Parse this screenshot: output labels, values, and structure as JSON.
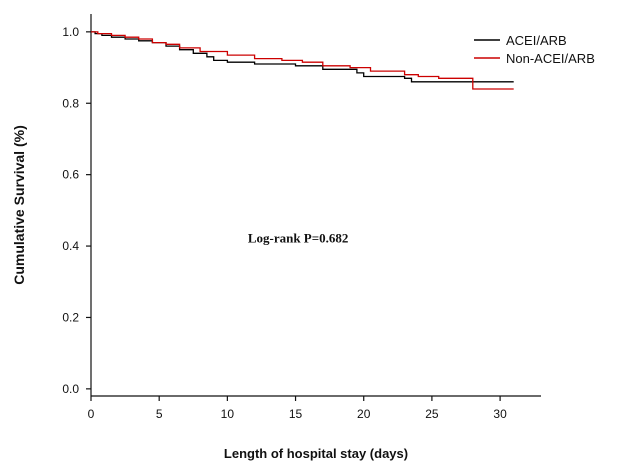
{
  "chart_data": {
    "type": "line",
    "xlabel": "Length of hospital stay (days)",
    "ylabel": "Cumulative Survival (%)",
    "xlim": [
      0,
      33
    ],
    "ylim": [
      -0.02,
      1.05
    ],
    "xticks": [
      0,
      5,
      10,
      15,
      20,
      25,
      30
    ],
    "yticks": [
      0.0,
      0.2,
      0.4,
      0.6,
      0.8,
      1.0
    ],
    "xtick_labels": [
      "0",
      "5",
      "10",
      "15",
      "20",
      "25",
      "30"
    ],
    "ytick_labels": [
      "0.0",
      "0.2",
      "0.4",
      "0.6",
      "0.8",
      "1.0"
    ],
    "legend_position": "top-right",
    "annotation": "Log-rank P=0.682",
    "grid": false,
    "series": [
      {
        "name": "ACEI/ARB",
        "color": "#000000",
        "step": true,
        "points": [
          [
            0,
            1.0
          ],
          [
            0.3,
            0.995
          ],
          [
            0.8,
            0.99
          ],
          [
            1.5,
            0.985
          ],
          [
            2.5,
            0.98
          ],
          [
            3.5,
            0.975
          ],
          [
            4.5,
            0.97
          ],
          [
            5.5,
            0.96
          ],
          [
            6.5,
            0.95
          ],
          [
            7.5,
            0.94
          ],
          [
            8.5,
            0.93
          ],
          [
            9.0,
            0.92
          ],
          [
            10.0,
            0.915
          ],
          [
            12.0,
            0.91
          ],
          [
            15.0,
            0.905
          ],
          [
            17.0,
            0.895
          ],
          [
            19.5,
            0.885
          ],
          [
            20.0,
            0.875
          ],
          [
            23.0,
            0.87
          ],
          [
            23.5,
            0.86
          ],
          [
            28.0,
            0.86
          ],
          [
            31.0,
            0.86
          ]
        ]
      },
      {
        "name": "Non-ACEI/ARB",
        "color": "#cc0000",
        "step": true,
        "points": [
          [
            0,
            1.0
          ],
          [
            0.5,
            0.995
          ],
          [
            1.5,
            0.99
          ],
          [
            2.5,
            0.985
          ],
          [
            3.5,
            0.98
          ],
          [
            4.5,
            0.97
          ],
          [
            5.5,
            0.965
          ],
          [
            6.5,
            0.955
          ],
          [
            8.0,
            0.945
          ],
          [
            10.0,
            0.935
          ],
          [
            12.0,
            0.925
          ],
          [
            14.0,
            0.92
          ],
          [
            15.5,
            0.915
          ],
          [
            17.0,
            0.905
          ],
          [
            19.0,
            0.9
          ],
          [
            20.5,
            0.89
          ],
          [
            23.0,
            0.88
          ],
          [
            24.0,
            0.875
          ],
          [
            25.5,
            0.87
          ],
          [
            28.0,
            0.84
          ],
          [
            29.0,
            0.84
          ],
          [
            31.0,
            0.84
          ]
        ]
      }
    ]
  }
}
